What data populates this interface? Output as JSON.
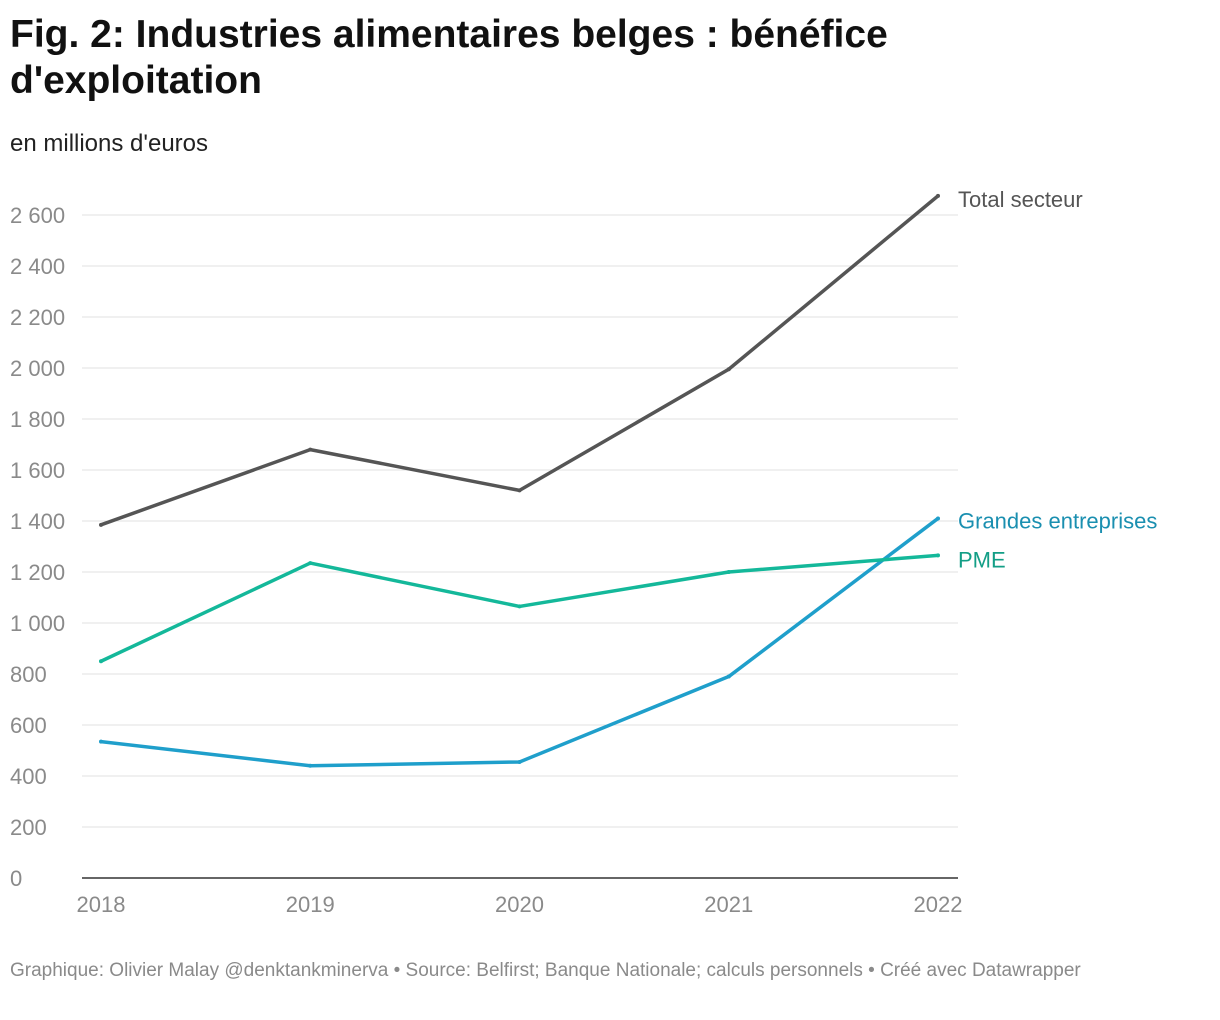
{
  "title": "Fig. 2: Industries alimentaires belges : bénéfice d'exploitation",
  "subtitle": "en millions d'euros",
  "footer": "Graphique: Olivier Malay @denktankminerva • Source: Belfirst; Banque Nationale; calculs personnels • Créé avec Datawrapper",
  "chart_data": {
    "type": "line",
    "title": "Fig. 2: Industries alimentaires belges : bénéfice d'exploitation",
    "ylabel": "en millions d'euros",
    "xlabel": "",
    "x": [
      "2018",
      "2019",
      "2020",
      "2021",
      "2022"
    ],
    "ylim": [
      0,
      2600
    ],
    "yticks": [
      0,
      200,
      400,
      600,
      800,
      1000,
      1200,
      1400,
      1600,
      1800,
      2000,
      2200,
      2400,
      2600
    ],
    "ytick_labels": [
      "0",
      "200",
      "400",
      "600",
      "800",
      "1 000",
      "1 200",
      "1 400",
      "1 600",
      "1 800",
      "2 000",
      "2 200",
      "2 400",
      "2 600"
    ],
    "grid": true,
    "series": [
      {
        "name": "Total secteur",
        "color": "#555555",
        "values": [
          1385,
          1680,
          1520,
          1995,
          2675
        ]
      },
      {
        "name": "Grandes entreprises",
        "color": "#1f9fcb",
        "labelColor": "#1a8fb0",
        "values": [
          535,
          440,
          455,
          790,
          1410
        ]
      },
      {
        "name": "PME",
        "color": "#14b89a",
        "labelColor": "#139e86",
        "values": [
          850,
          1235,
          1065,
          1200,
          1265
        ]
      }
    ]
  }
}
